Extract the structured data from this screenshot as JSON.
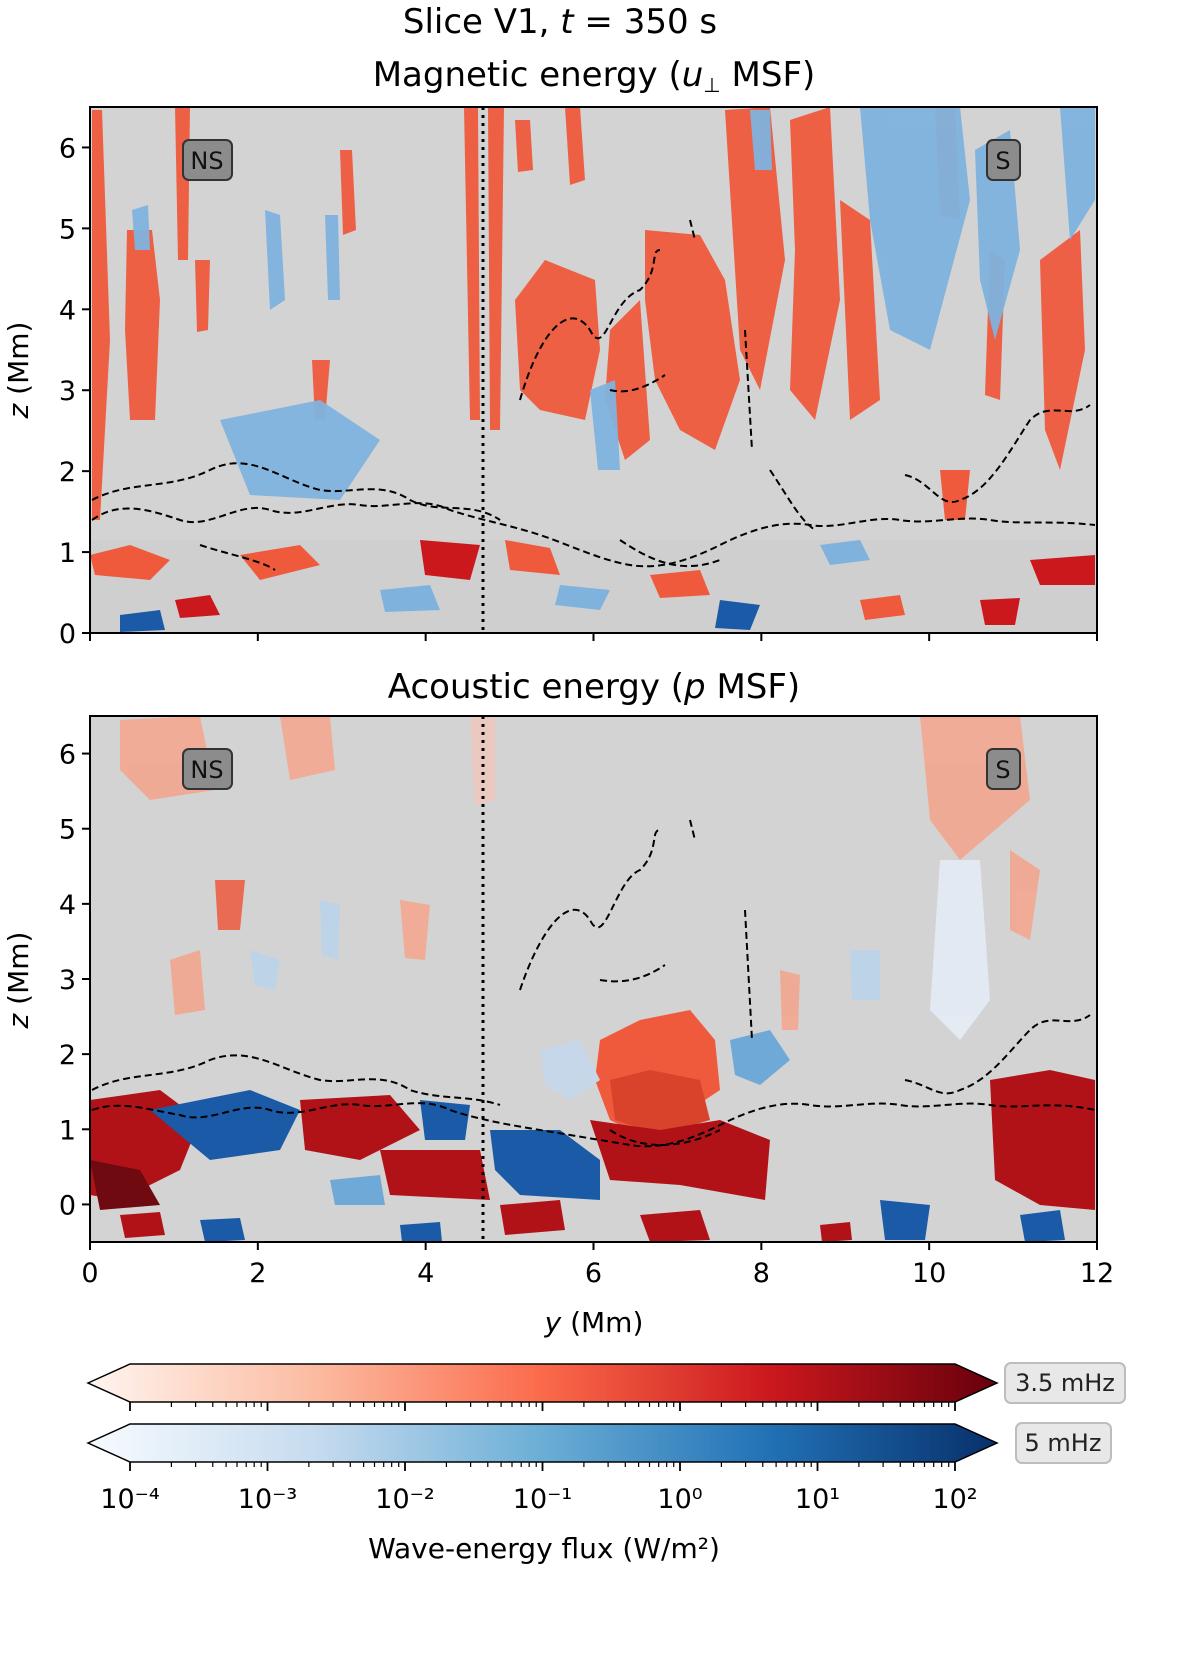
{
  "figure": {
    "suptitle": "Slice V1, t = 350 s",
    "suptitle_prefix": "Slice V1, ",
    "suptitle_var": "t",
    "suptitle_suffix": " = 350 s"
  },
  "panels": [
    {
      "title": "Magnetic energy (u⊥ MSF)",
      "title_prefix": "Magnetic energy (",
      "title_var": "u",
      "title_sub": "⊥",
      "title_suffix": " MSF)",
      "left_label": "NS",
      "right_label": "S",
      "ylabel": "z (Mm)",
      "yticks": [
        "0",
        "1",
        "2",
        "3",
        "4",
        "5",
        "6"
      ]
    },
    {
      "title": "Acoustic energy (p MSF)",
      "title_prefix": "Acoustic energy (",
      "title_var": "p",
      "title_suffix": " MSF)",
      "left_label": "NS",
      "right_label": "S",
      "ylabel": "z (Mm)",
      "yticks": [
        "0",
        "1",
        "2",
        "3",
        "4",
        "5",
        "6"
      ]
    }
  ],
  "xaxis": {
    "label": "y (Mm)",
    "ticks": [
      "0",
      "2",
      "4",
      "6",
      "8",
      "10",
      "12"
    ]
  },
  "colorbars": [
    {
      "label": "3.5 mHz",
      "low_color": "#fff5f0",
      "mid_color": "#fb6a4a",
      "high_color": "#67000d"
    },
    {
      "label": "5 mHz",
      "low_color": "#f7fbff",
      "mid_color": "#6baed6",
      "high_color": "#08306b"
    }
  ],
  "colorbar_ticks": [
    "10⁻⁴",
    "10⁻³",
    "10⁻²",
    "10⁻¹",
    "10⁰",
    "10¹",
    "10²"
  ],
  "colorbar_label": "Wave-energy flux (W/m²)",
  "chart_data": {
    "type": "heatmap",
    "title": "Slice V1, t = 350 s",
    "xlabel": "y (Mm)",
    "ylabel": "z (Mm)",
    "xlim": [
      0,
      12
    ],
    "panels": [
      {
        "name": "Magnetic energy (u⊥ MSF)",
        "ylim": [
          0,
          6.5
        ],
        "colormap": "Reds (3.5 mHz) / Blues (5 mHz)"
      },
      {
        "name": "Acoustic energy (p MSF)",
        "ylim": [
          -0.5,
          6.5
        ],
        "colormap": "Reds (3.5 mHz) / Blues (5 mHz)"
      }
    ],
    "vertical_reference_line_y": 4.7,
    "colorbar_range": [
      0.0001,
      100
    ],
    "colorbar_scale": "log",
    "colorbar_label": "Wave-energy flux (W/m²)"
  },
  "colors": {
    "background": "#d3d3d3",
    "red": "#ef5a3d",
    "dark_red": "#b11218",
    "blue": "#6fa9d8",
    "dark_blue": "#1a5aa6"
  }
}
